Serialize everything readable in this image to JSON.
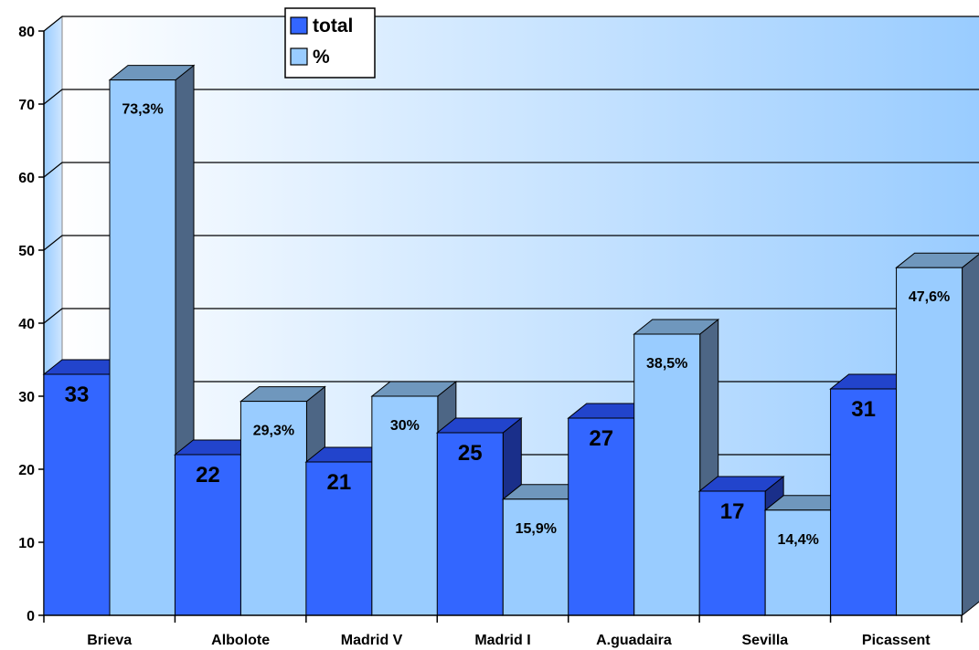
{
  "chart_data": {
    "type": "bar",
    "title": "",
    "xlabel": "",
    "ylabel": "",
    "ylim": [
      0,
      80
    ],
    "yticks": [
      "0",
      "10",
      "20",
      "30",
      "40",
      "50",
      "60",
      "70",
      "80"
    ],
    "grid": true,
    "legend_position": "top-center",
    "categories": [
      "Brieva",
      "Albolote",
      "Madrid V",
      "Madrid I",
      "A.guadaira",
      "Sevilla",
      "Picassent"
    ],
    "series": [
      {
        "name": "total",
        "values": [
          33,
          22,
          21,
          25,
          27,
          17,
          31
        ],
        "labels": [
          "33",
          "22",
          "21",
          "25",
          "27",
          "17",
          "31"
        ],
        "color": "#3366ff",
        "top_color": "#2244cc",
        "side_color": "#1a2f8a"
      },
      {
        "name": "%",
        "values": [
          73.3,
          29.3,
          30,
          15.9,
          38.5,
          14.4,
          47.6
        ],
        "labels": [
          "73,3%",
          "29,3%",
          "30%",
          "15,9%",
          "38,5%",
          "14,4%",
          "47,6%"
        ],
        "color": "#99ccff",
        "top_color": "#6f97bd",
        "side_color": "#4d6685"
      }
    ],
    "wall_color_left": "#ffffff",
    "wall_color_right": "#99ccff",
    "floor_color": "#6f97bd"
  }
}
